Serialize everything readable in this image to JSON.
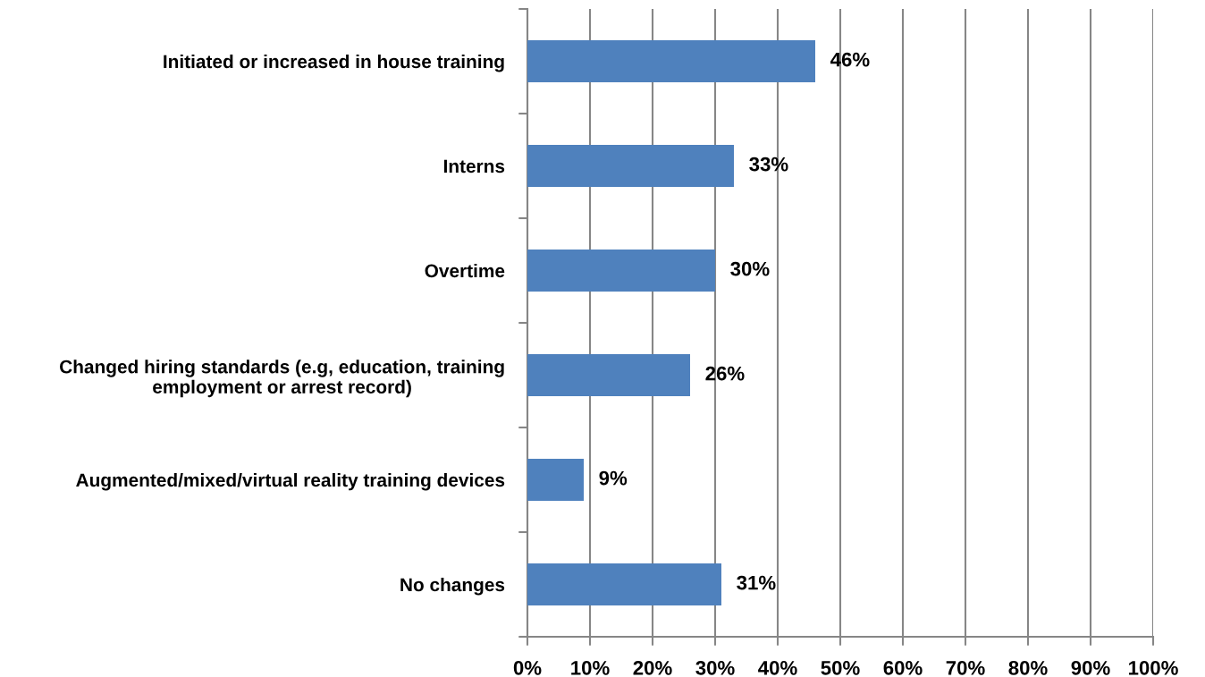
{
  "chart_data": {
    "type": "bar",
    "orientation": "horizontal",
    "categories": [
      "Initiated or increased in house training",
      "Interns",
      "Overtime",
      "Changed hiring standards (e.g, education, training\nemployment or arrest record)",
      "Augmented/mixed/virtual reality training devices",
      "No changes"
    ],
    "values": [
      46,
      33,
      30,
      26,
      9,
      31
    ],
    "color": "#4f81bd",
    "data_labels": true,
    "value_labels": [
      "46%",
      "33%",
      "30%",
      "26%",
      "9%",
      "31%"
    ],
    "xlim": [
      0,
      100
    ],
    "xticks": [
      {
        "value": 0,
        "label": "0%"
      },
      {
        "value": 10,
        "label": "10%"
      },
      {
        "value": 20,
        "label": "20%"
      },
      {
        "value": 30,
        "label": "30%"
      },
      {
        "value": 40,
        "label": "40%"
      },
      {
        "value": 50,
        "label": "50%"
      },
      {
        "value": 60,
        "label": "60%"
      },
      {
        "value": 70,
        "label": "70%"
      },
      {
        "value": 80,
        "label": "80%"
      },
      {
        "value": 90,
        "label": "90%"
      },
      {
        "value": 100,
        "label": "100%"
      }
    ],
    "grid": "x",
    "legend": false
  }
}
